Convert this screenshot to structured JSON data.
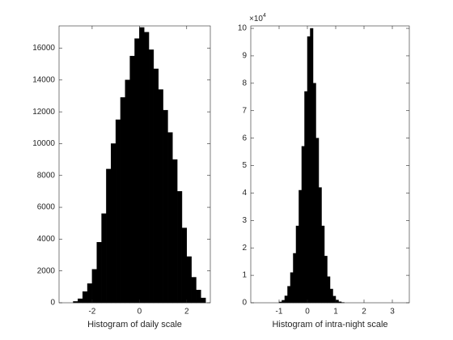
{
  "chart_data": [
    {
      "type": "histogram",
      "xlabel": "Histogram of daily scale",
      "color": "#000000",
      "bins": [
        -2.8,
        -2.6,
        -2.4,
        -2.2,
        -2.0,
        -1.8,
        -1.6,
        -1.4,
        -1.2,
        -1.0,
        -0.8,
        -0.6,
        -0.4,
        -0.2,
        0.0,
        0.2,
        0.4,
        0.6,
        0.8,
        1.0,
        1.2,
        1.4,
        1.6,
        1.8,
        2.0,
        2.2,
        2.4,
        2.6,
        2.8
      ],
      "counts": [
        80,
        250,
        700,
        1200,
        2100,
        3800,
        5600,
        8400,
        10000,
        11500,
        12900,
        14000,
        15500,
        16600,
        17300,
        17000,
        15900,
        14700,
        13400,
        12100,
        10700,
        9000,
        7000,
        4700,
        2900,
        1600,
        800,
        300
      ],
      "xlim": [
        -3.4,
        3.0
      ],
      "xticks": [
        -2,
        0,
        2
      ],
      "ylim": [
        0,
        17400
      ],
      "yticks": [
        0,
        2000,
        4000,
        6000,
        8000,
        10000,
        12000,
        14000,
        16000
      ]
    },
    {
      "type": "histogram",
      "xlabel": "Histogram of intra-night scale",
      "color": "#000000",
      "bins": [
        -1.0,
        -0.9,
        -0.8,
        -0.7,
        -0.6,
        -0.5,
        -0.4,
        -0.3,
        -0.2,
        -0.1,
        0.0,
        0.1,
        0.2,
        0.3,
        0.4,
        0.5,
        0.6,
        0.7,
        0.8,
        0.9,
        1.0,
        1.1,
        1.2,
        1.3
      ],
      "counts": [
        300,
        900,
        2500,
        6000,
        11000,
        18000,
        28000,
        41000,
        57000,
        77000,
        97000,
        100000,
        80000,
        60000,
        42000,
        28000,
        17000,
        9500,
        5000,
        2400,
        1000,
        350,
        100
      ],
      "xlim": [
        -2.0,
        3.6
      ],
      "xticks": [
        -1,
        0,
        1,
        2,
        3
      ],
      "ylim": [
        0,
        100900
      ],
      "yticks": [
        0,
        {
          "value": 10000,
          "label": "1"
        },
        {
          "value": 20000,
          "label": "2"
        },
        {
          "value": 30000,
          "label": "3"
        },
        {
          "value": 40000,
          "label": "4"
        },
        {
          "value": 50000,
          "label": "5"
        },
        {
          "value": 60000,
          "label": "6"
        },
        {
          "value": 70000,
          "label": "7"
        },
        {
          "value": 80000,
          "label": "8"
        },
        {
          "value": 90000,
          "label": "9"
        },
        {
          "value": 100000,
          "label": "10"
        }
      ],
      "y_exponent_base": "×10",
      "y_exponent_power": "4"
    }
  ]
}
